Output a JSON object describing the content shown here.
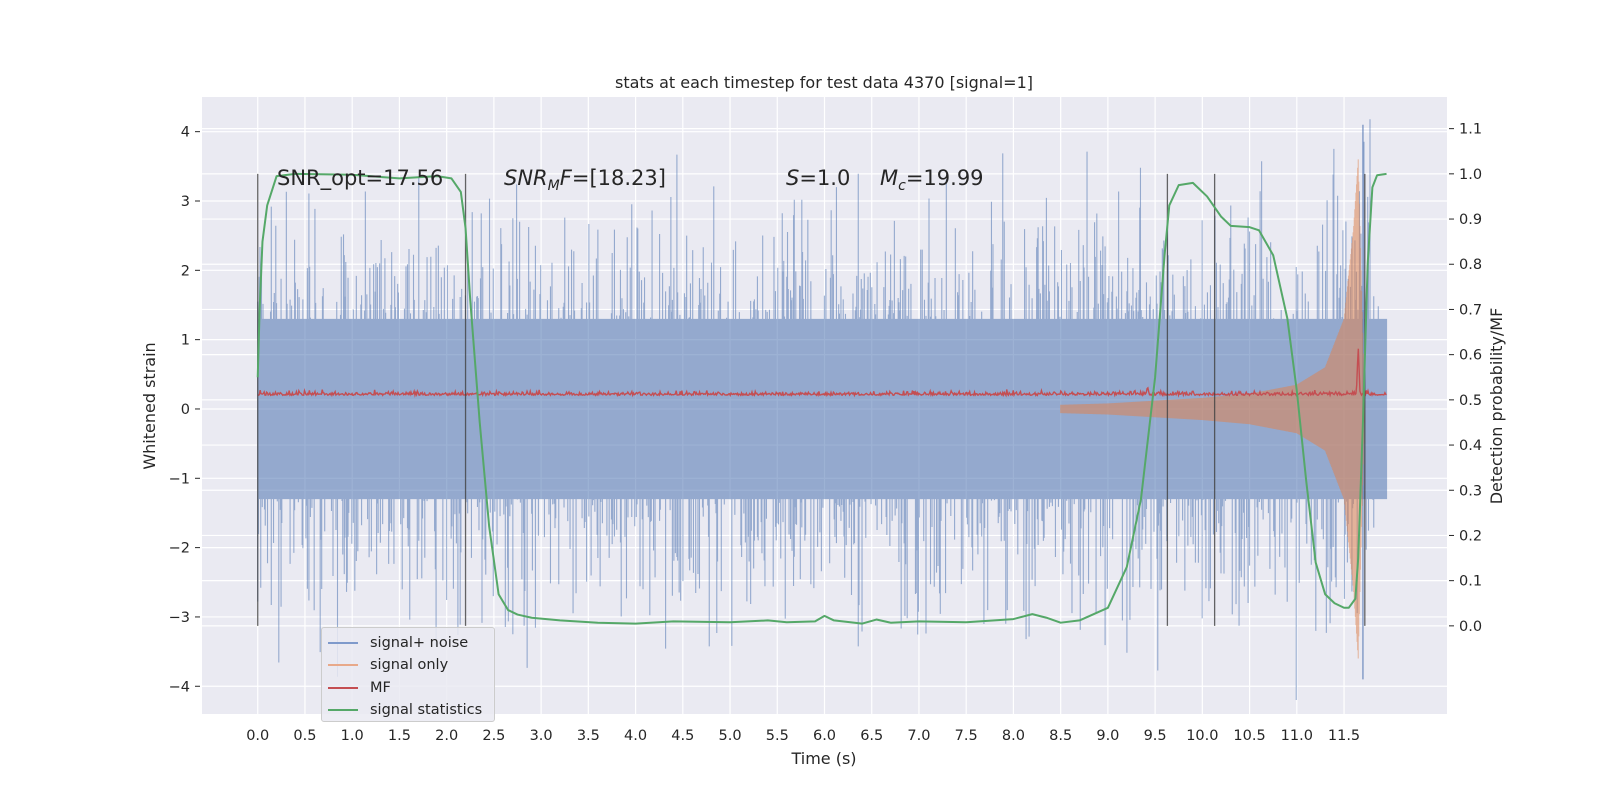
{
  "chart_data": {
    "type": "line",
    "title": "stats at each timestep for test data 4370 [signal=1]",
    "xlabel": "Time (s)",
    "ylabel_left": "Whitened strain",
    "ylabel_right": "Detection probability/MF",
    "xlim": [
      -0.59,
      12.59
    ],
    "ylim_left": [
      -4.4,
      4.5
    ],
    "ylim_right": [
      -0.195,
      1.17
    ],
    "x_ticks": [
      "0.0",
      "0.5",
      "1.0",
      "1.5",
      "2.0",
      "2.5",
      "3.0",
      "3.5",
      "4.0",
      "4.5",
      "5.0",
      "5.5",
      "6.0",
      "6.5",
      "7.0",
      "7.5",
      "8.0",
      "8.5",
      "9.0",
      "9.5",
      "10.0",
      "10.5",
      "11.0",
      "11.5"
    ],
    "y_ticks_left": [
      "4",
      "3",
      "2",
      "1",
      "0",
      "−1",
      "−2",
      "−3",
      "−4"
    ],
    "y_ticks_right": [
      "1.1",
      "1.0",
      "0.9",
      "0.8",
      "0.7",
      "0.6",
      "0.5",
      "0.4",
      "0.3",
      "0.2",
      "0.1",
      "0.0"
    ],
    "grid": true,
    "legend_placement": "lower-left",
    "annotations": {
      "snr_opt": "SNR_opt=17.56",
      "snr_mf": "[18.23]",
      "s": "=1.0",
      "mc": "=19.99"
    },
    "vertical_lines_x": [
      0.0,
      2.2,
      9.63,
      10.13,
      11.72
    ],
    "series": [
      {
        "name": "signal+ noise",
        "color": "#4c72b0",
        "axis": "left",
        "envelope": {
          "x": [
            0.0,
            11.6,
            11.72,
            11.8,
            11.95
          ],
          "upper_typical": [
            2.8,
            2.9,
            4.1,
            2.9,
            2.9
          ],
          "lower_typical": [
            -2.8,
            -2.9,
            -3.9,
            -2.6,
            -2.5
          ]
        }
      },
      {
        "name": "signal only",
        "color": "#dd8452",
        "axis": "left",
        "chirp": {
          "x": [
            8.5,
            9.0,
            9.5,
            10.0,
            10.5,
            11.0,
            11.3,
            11.5,
            11.6,
            11.65,
            11.68,
            11.72
          ],
          "amplitude": [
            0.06,
            0.08,
            0.12,
            0.16,
            0.22,
            0.35,
            0.6,
            1.3,
            2.6,
            3.6,
            2.0,
            0.0
          ]
        }
      },
      {
        "name": "MF",
        "color": "#c44e52",
        "axis": "right",
        "baseline": 0.51,
        "peaks": [
          {
            "x": 9.42,
            "y": 0.53
          },
          {
            "x": 11.65,
            "y": 0.62
          }
        ]
      },
      {
        "name": "signal statistics",
        "color": "#55a868",
        "axis": "right",
        "x": [
          0.0,
          0.02,
          0.05,
          0.1,
          0.2,
          0.4,
          1.0,
          1.5,
          1.9,
          2.05,
          2.15,
          2.2,
          2.25,
          2.35,
          2.45,
          2.55,
          2.65,
          2.75,
          2.9,
          3.2,
          3.6,
          4.0,
          4.4,
          5.0,
          5.4,
          5.6,
          5.9,
          6.0,
          6.1,
          6.4,
          6.55,
          6.7,
          7.0,
          7.5,
          8.0,
          8.2,
          8.35,
          8.5,
          8.7,
          9.0,
          9.2,
          9.35,
          9.5,
          9.6,
          9.65,
          9.75,
          9.9,
          10.05,
          10.2,
          10.3,
          10.5,
          10.6,
          10.75,
          10.9,
          11.0,
          11.1,
          11.2,
          11.3,
          11.4,
          11.5,
          11.55,
          11.62,
          11.65,
          11.7,
          11.75,
          11.8,
          11.85,
          11.95
        ],
        "y": [
          0.55,
          0.7,
          0.85,
          0.93,
          0.995,
          1.0,
          0.998,
          0.99,
          0.995,
          0.99,
          0.96,
          0.88,
          0.72,
          0.45,
          0.22,
          0.07,
          0.035,
          0.025,
          0.018,
          0.012,
          0.007,
          0.005,
          0.01,
          0.008,
          0.012,
          0.008,
          0.01,
          0.022,
          0.012,
          0.005,
          0.014,
          0.007,
          0.01,
          0.008,
          0.015,
          0.026,
          0.018,
          0.007,
          0.012,
          0.04,
          0.13,
          0.28,
          0.55,
          0.82,
          0.93,
          0.975,
          0.98,
          0.95,
          0.905,
          0.885,
          0.882,
          0.875,
          0.82,
          0.68,
          0.52,
          0.32,
          0.14,
          0.07,
          0.05,
          0.04,
          0.04,
          0.06,
          0.15,
          0.45,
          0.8,
          0.97,
          0.997,
          1.0
        ]
      }
    ]
  }
}
